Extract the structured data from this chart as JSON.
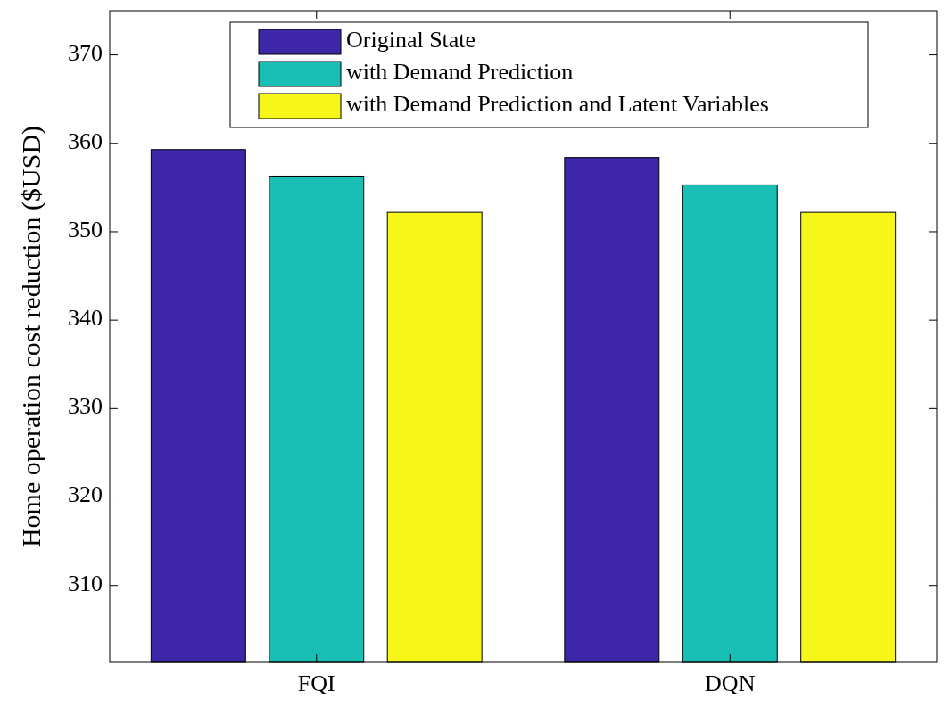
{
  "chart_data": {
    "type": "bar",
    "ylabel": "Home operation cost reduction ($USD)",
    "categories": [
      "FQI",
      "DQN"
    ],
    "series": [
      {
        "name": "Original State",
        "color": "#3e26a8",
        "values": [
          359.3,
          358.4
        ]
      },
      {
        "name": "with Demand Prediction",
        "color": "#19bfb5",
        "values": [
          356.3,
          355.3
        ]
      },
      {
        "name": "with Demand Prediction and Latent Variables",
        "color": "#f6f61a",
        "values": [
          352.2,
          352.2
        ]
      }
    ],
    "ylim": [
      301.3,
      375
    ],
    "yticks": [
      310,
      320,
      330,
      340,
      350,
      360,
      370
    ],
    "grid": false,
    "legend": "top"
  }
}
